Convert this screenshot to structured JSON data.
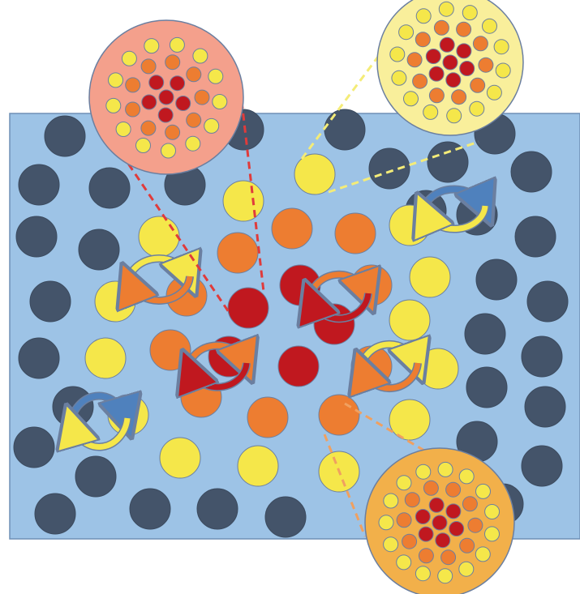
{
  "colors": {
    "background_panel": "#9dc3e6",
    "panel_border": "#6e8fb5",
    "dark_particle": "#44546a",
    "yellow": "#f5e74a",
    "orange": "#ed7d31",
    "red": "#c0181f",
    "zoom_red_fill": "#f4a08c",
    "zoom_yellow_fill": "#f9ef9b",
    "zoom_orange_fill": "#f2b04a",
    "arrow_blue": "#4f81bd",
    "arrow_yellow": "#f5e74a",
    "arrow_orange": "#ed7d31",
    "arrow_red": "#c0181f",
    "outline": "#6b7fa0"
  },
  "zoom_insets": [
    {
      "kind": "red-cluster"
    },
    {
      "kind": "yellow-cluster"
    },
    {
      "kind": "orange-cluster"
    }
  ],
  "rotation_arrow_pairs": [
    {
      "colors": [
        "yellow",
        "orange"
      ]
    },
    {
      "colors": [
        "blue",
        "yellow"
      ]
    },
    {
      "colors": [
        "orange",
        "red"
      ]
    },
    {
      "colors": [
        "orange",
        "red"
      ]
    },
    {
      "colors": [
        "yellow",
        "orange"
      ]
    },
    {
      "colors": [
        "blue",
        "yellow"
      ]
    }
  ]
}
